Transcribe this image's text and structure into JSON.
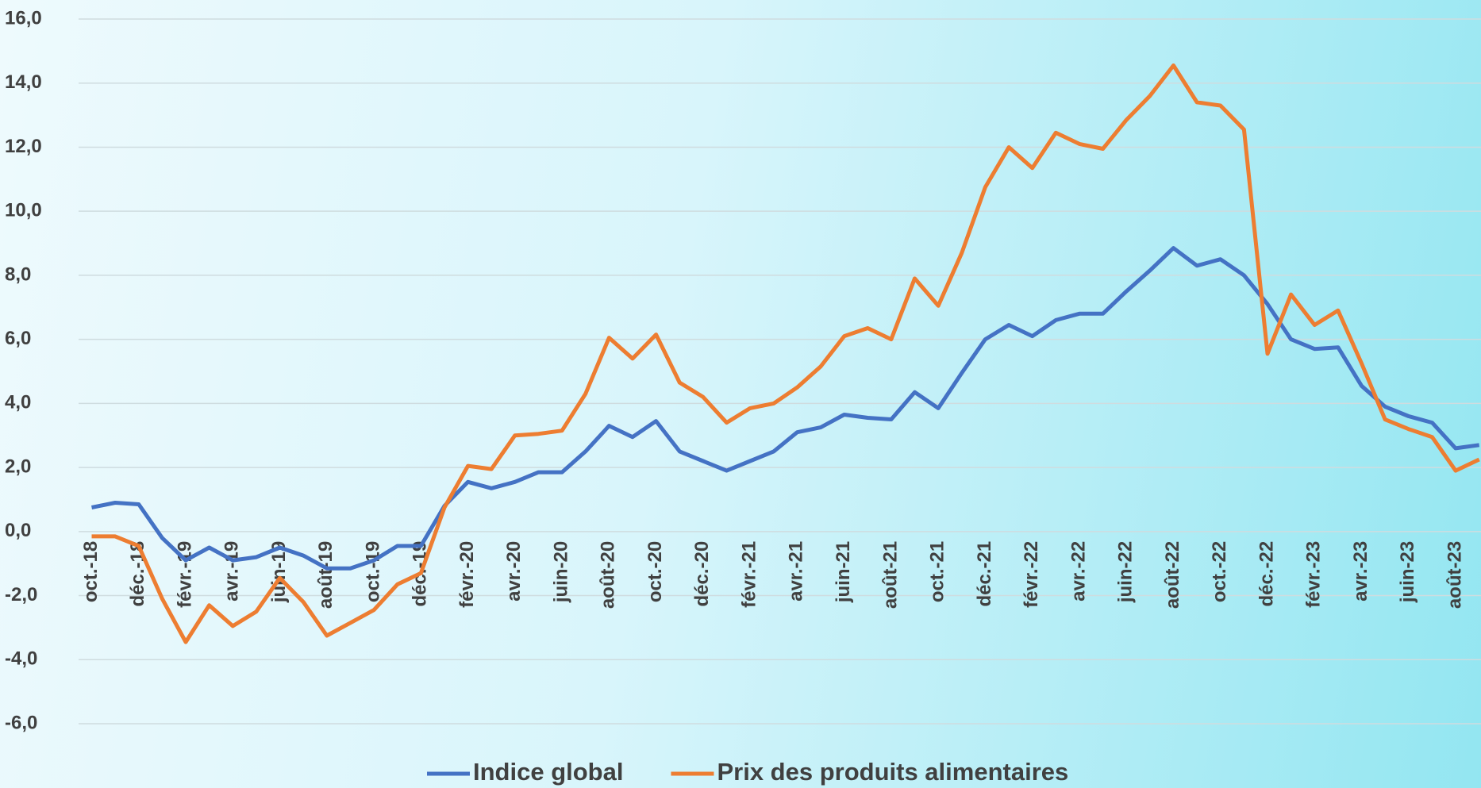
{
  "chart_data": {
    "type": "line",
    "categories": [
      "oct.-18",
      null,
      "déc.-18",
      null,
      "févr.-19",
      null,
      "avr.-19",
      null,
      "juin-19",
      null,
      "août-19",
      null,
      "oct.-19",
      null,
      "déc.-19",
      null,
      "févr.-20",
      null,
      "avr.-20",
      null,
      "juin-20",
      null,
      "août-20",
      null,
      "oct.-20",
      null,
      "déc.-20",
      null,
      "févr.-21",
      null,
      "avr.-21",
      null,
      "juin-21",
      null,
      "août-21",
      null,
      "oct.-21",
      null,
      "déc.-21",
      null,
      "févr.-22",
      null,
      "avr.-22",
      null,
      "juin-22",
      null,
      "août-22",
      null,
      "oct.-22",
      null,
      "déc.-22",
      null,
      "févr.-23",
      null,
      "avr.-23",
      null,
      "juin-23",
      null,
      "août-23",
      null
    ],
    "series": [
      {
        "name": "Indice global",
        "color": "#4472c4",
        "values": [
          0.75,
          0.9,
          0.85,
          -0.2,
          -0.9,
          -0.5,
          -0.9,
          -0.8,
          -0.5,
          -0.75,
          -1.15,
          -1.15,
          -0.9,
          -0.45,
          -0.45,
          0.8,
          1.55,
          1.35,
          1.55,
          1.85,
          1.85,
          2.5,
          3.3,
          2.95,
          3.45,
          2.5,
          2.2,
          1.9,
          2.2,
          2.5,
          3.1,
          3.25,
          3.65,
          3.55,
          3.5,
          4.35,
          3.85,
          4.95,
          6.0,
          6.45,
          6.1,
          6.6,
          6.8,
          6.8,
          7.5,
          8.15,
          8.85,
          8.3,
          8.5,
          8.0,
          7.1,
          6.0,
          5.7,
          5.75,
          4.55,
          3.9,
          3.6,
          3.4,
          2.6,
          2.7
        ]
      },
      {
        "name": "Prix des produits alimentaires",
        "color": "#ed7d31",
        "values": [
          -0.15,
          -0.15,
          -0.45,
          -2.1,
          -3.45,
          -2.3,
          -2.95,
          -2.5,
          -1.45,
          -2.2,
          -3.25,
          -2.85,
          -2.45,
          -1.65,
          -1.3,
          0.75,
          2.05,
          1.95,
          3.0,
          3.05,
          3.15,
          4.3,
          6.05,
          5.4,
          6.15,
          4.65,
          4.2,
          3.4,
          3.85,
          4.0,
          4.5,
          5.15,
          6.1,
          6.35,
          6.0,
          7.9,
          7.05,
          8.7,
          10.75,
          12.0,
          11.35,
          12.45,
          12.1,
          11.95,
          12.85,
          13.6,
          14.55,
          13.4,
          13.3,
          12.55,
          5.55,
          7.4,
          6.45,
          6.9,
          5.25,
          3.5,
          3.2,
          2.95,
          1.9,
          2.25
        ]
      }
    ],
    "ylim": [
      -6,
      16
    ],
    "yticks": [
      {
        "value": -6,
        "label": "-6,0"
      },
      {
        "value": -4,
        "label": "-4,0"
      },
      {
        "value": -2,
        "label": "-2,0"
      },
      {
        "value": 0,
        "label": "0,0"
      },
      {
        "value": 2,
        "label": "2,0"
      },
      {
        "value": 4,
        "label": "4,0"
      },
      {
        "value": 6,
        "label": "6,0"
      },
      {
        "value": 8,
        "label": "8,0"
      },
      {
        "value": 10,
        "label": "10,0"
      },
      {
        "value": 12,
        "label": "12,0"
      },
      {
        "value": 14,
        "label": "14,0"
      },
      {
        "value": 16,
        "label": "16,0"
      }
    ],
    "grid": true
  }
}
